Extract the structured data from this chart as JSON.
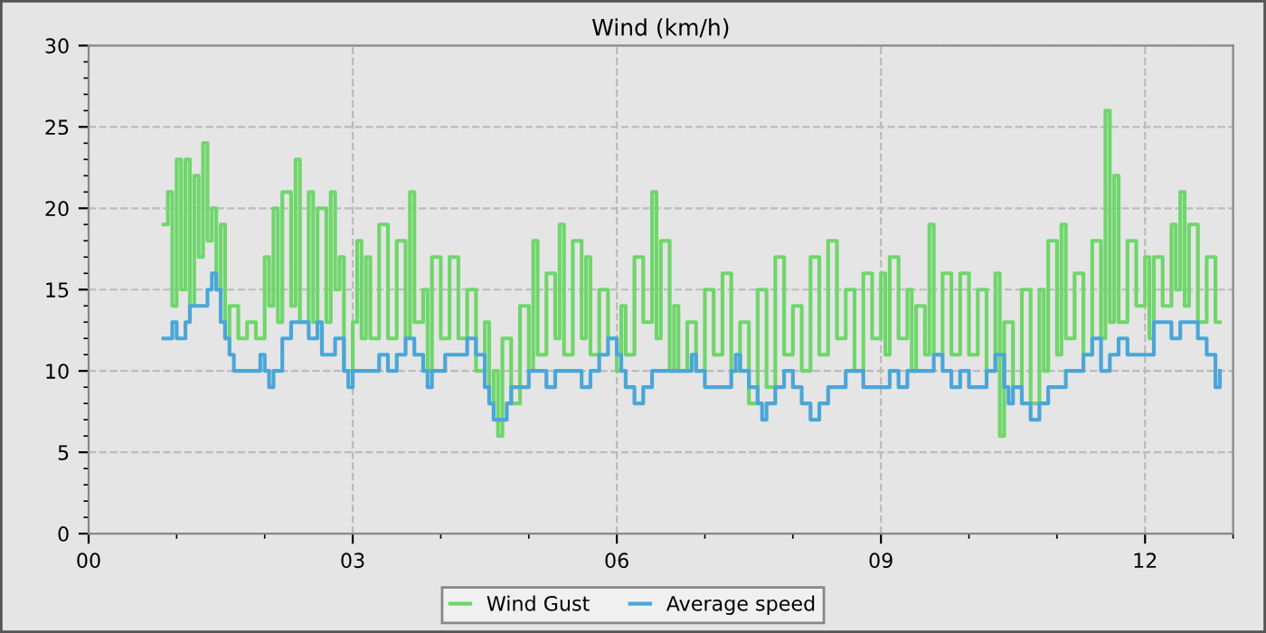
{
  "chart_data": {
    "type": "step",
    "title": "Wind (km/h)",
    "xlim": [
      0,
      13
    ],
    "ylim": [
      0,
      30
    ],
    "xticks": [
      {
        "value": 0,
        "label": "00"
      },
      {
        "value": 3,
        "label": "03"
      },
      {
        "value": 6,
        "label": "06"
      },
      {
        "value": 9,
        "label": "09"
      },
      {
        "value": 12,
        "label": "12"
      }
    ],
    "yticks": [
      0,
      5,
      10,
      15,
      20,
      25,
      30
    ],
    "grid": true,
    "legend": "bottom",
    "line_style": "solid",
    "marker": "none",
    "series": [
      {
        "name": "Wind Gust",
        "color": "#6fd66b",
        "x": [
          0.85,
          0.9,
          0.95,
          1.0,
          1.05,
          1.1,
          1.15,
          1.2,
          1.25,
          1.3,
          1.35,
          1.4,
          1.45,
          1.5,
          1.55,
          1.6,
          1.7,
          1.8,
          1.9,
          2.0,
          2.05,
          2.1,
          2.15,
          2.2,
          2.3,
          2.35,
          2.4,
          2.5,
          2.55,
          2.6,
          2.7,
          2.75,
          2.8,
          2.85,
          2.9,
          3.0,
          3.05,
          3.1,
          3.15,
          3.2,
          3.3,
          3.4,
          3.5,
          3.6,
          3.65,
          3.7,
          3.8,
          3.85,
          3.9,
          4.0,
          4.1,
          4.2,
          4.3,
          4.4,
          4.5,
          4.55,
          4.6,
          4.65,
          4.7,
          4.8,
          4.9,
          5.0,
          5.05,
          5.1,
          5.2,
          5.3,
          5.35,
          5.4,
          5.5,
          5.6,
          5.65,
          5.7,
          5.8,
          5.9,
          6.0,
          6.05,
          6.1,
          6.2,
          6.3,
          6.4,
          6.45,
          6.5,
          6.6,
          6.65,
          6.7,
          6.8,
          6.9,
          7.0,
          7.1,
          7.2,
          7.3,
          7.4,
          7.5,
          7.6,
          7.7,
          7.8,
          7.9,
          8.0,
          8.1,
          8.2,
          8.3,
          8.4,
          8.5,
          8.6,
          8.7,
          8.8,
          8.9,
          9.0,
          9.05,
          9.1,
          9.2,
          9.3,
          9.35,
          9.4,
          9.5,
          9.55,
          9.6,
          9.7,
          9.8,
          9.9,
          10.0,
          10.1,
          10.2,
          10.3,
          10.35,
          10.4,
          10.5,
          10.6,
          10.7,
          10.8,
          10.85,
          10.9,
          11.0,
          11.05,
          11.1,
          11.2,
          11.3,
          11.4,
          11.5,
          11.55,
          11.6,
          11.65,
          11.7,
          11.8,
          11.9,
          12.0,
          12.05,
          12.1,
          12.2,
          12.3,
          12.35,
          12.4,
          12.45,
          12.5,
          12.6,
          12.7,
          12.8,
          12.85
        ],
        "values": [
          19,
          21,
          14,
          23,
          15,
          23,
          14,
          22,
          17,
          24,
          18,
          20,
          15,
          19,
          12,
          14,
          12,
          13,
          12,
          17,
          14,
          20,
          13,
          21,
          14,
          23,
          13,
          21,
          13,
          20,
          13,
          21,
          15,
          17,
          10,
          13,
          18,
          12,
          17,
          12,
          19,
          12,
          18,
          12,
          21,
          13,
          15,
          10,
          17,
          12,
          17,
          12,
          15,
          10,
          13,
          8,
          10,
          6,
          12,
          8,
          14,
          10,
          18,
          11,
          16,
          12,
          19,
          11,
          18,
          12,
          17,
          11,
          15,
          12,
          10,
          14,
          11,
          17,
          13,
          21,
          12,
          18,
          10,
          14,
          10,
          13,
          10,
          15,
          11,
          16,
          10,
          13,
          8,
          15,
          9,
          17,
          11,
          14,
          10,
          17,
          11,
          18,
          12,
          15,
          10,
          16,
          12,
          16,
          11,
          17,
          12,
          15,
          10,
          14,
          11,
          19,
          11,
          16,
          11,
          16,
          11,
          15,
          10,
          16,
          6,
          13,
          9,
          15,
          8,
          15,
          10,
          18,
          11,
          19,
          12,
          16,
          11,
          18,
          12,
          26,
          13,
          22,
          13,
          18,
          14,
          17,
          12,
          17,
          14,
          19,
          15,
          21,
          14,
          19,
          13,
          17,
          13,
          13
        ]
      },
      {
        "name": "Average speed",
        "color": "#4aa6d8",
        "x": [
          0.85,
          0.95,
          1.0,
          1.1,
          1.15,
          1.3,
          1.35,
          1.4,
          1.45,
          1.5,
          1.55,
          1.6,
          1.65,
          1.9,
          1.95,
          2.0,
          2.05,
          2.1,
          2.2,
          2.3,
          2.5,
          2.6,
          2.65,
          2.8,
          2.9,
          2.95,
          3.0,
          3.2,
          3.3,
          3.4,
          3.5,
          3.6,
          3.7,
          3.8,
          3.85,
          3.9,
          4.05,
          4.2,
          4.3,
          4.4,
          4.5,
          4.55,
          4.6,
          4.75,
          4.8,
          5.0,
          5.2,
          5.3,
          5.5,
          5.6,
          5.7,
          5.8,
          5.9,
          6.0,
          6.05,
          6.1,
          6.2,
          6.3,
          6.4,
          6.85,
          6.9,
          7.0,
          7.3,
          7.35,
          7.4,
          7.5,
          7.6,
          7.65,
          7.7,
          7.8,
          7.9,
          8.0,
          8.1,
          8.2,
          8.3,
          8.4,
          8.6,
          8.8,
          9.1,
          9.2,
          9.3,
          9.6,
          9.7,
          9.8,
          9.9,
          10.0,
          10.2,
          10.3,
          10.4,
          10.45,
          10.5,
          10.6,
          10.7,
          10.8,
          10.9,
          11.1,
          11.3,
          11.4,
          11.5,
          11.6,
          11.7,
          11.8,
          12.1,
          12.3,
          12.4,
          12.6,
          12.7,
          12.8,
          12.85
        ],
        "values": [
          12,
          13,
          12,
          13,
          14,
          14,
          15,
          16,
          15,
          13,
          12,
          11,
          10,
          10,
          11,
          10,
          9,
          10,
          12,
          13,
          12,
          13,
          11,
          12,
          10,
          9,
          10,
          10,
          11,
          10,
          11,
          12,
          11,
          10,
          9,
          10,
          11,
          11,
          12,
          11,
          9,
          8,
          7,
          8,
          9,
          10,
          9,
          10,
          10,
          9,
          10,
          11,
          12,
          11,
          10,
          9,
          8,
          9,
          10,
          11,
          10,
          9,
          10,
          11,
          10,
          9,
          8,
          7,
          8,
          9,
          10,
          9,
          8,
          7,
          8,
          9,
          10,
          9,
          10,
          9,
          10,
          11,
          10,
          9,
          10,
          9,
          10,
          11,
          9,
          8,
          9,
          8,
          7,
          8,
          9,
          10,
          11,
          12,
          10,
          11,
          12,
          11,
          13,
          12,
          13,
          12,
          11,
          9,
          10
        ]
      }
    ]
  }
}
